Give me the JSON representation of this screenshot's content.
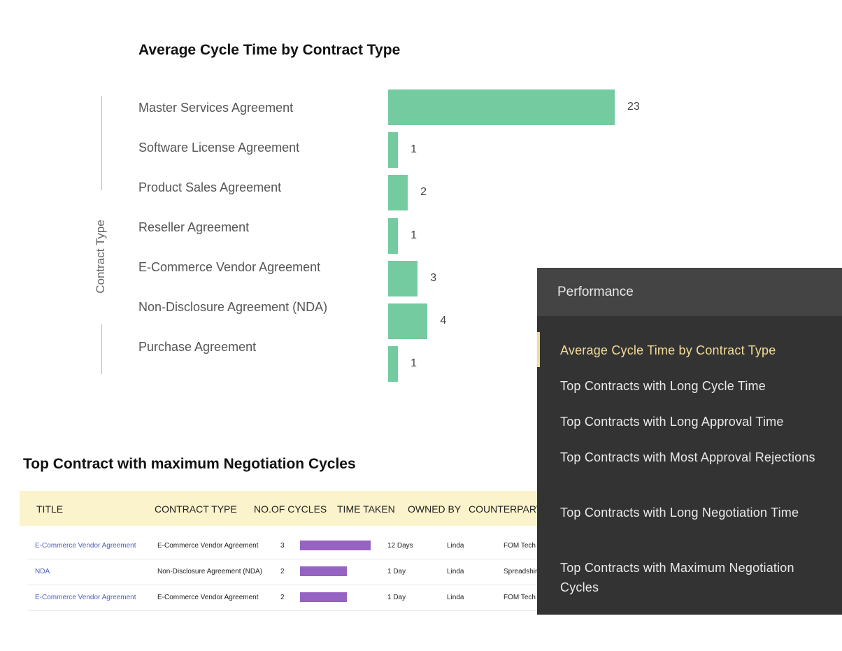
{
  "chart_data": {
    "type": "bar",
    "orientation": "horizontal",
    "title": "Average Cycle Time by Contract Type",
    "ylabel": "Contract Type",
    "categories": [
      "Master Services Agreement",
      "Software License Agreement",
      "Product Sales Agreement",
      "Reseller Agreement",
      "E-Commerce Vendor Agreement",
      "Non-Disclosure Agreement (NDA)",
      "Purchase Agreement"
    ],
    "values": [
      23,
      1,
      2,
      1,
      3,
      4,
      1
    ],
    "color": "#74cba0",
    "grid": false
  },
  "table": {
    "title": "Top Contract with maximum Negotiation Cycles",
    "headers": [
      "TITLE",
      "CONTRACT TYPE",
      "NO.OF CYCLES",
      "TIME TAKEN",
      "OWNED BY",
      "COUNTERPART"
    ],
    "bar_color": "#9563c2",
    "rows": [
      {
        "title": "E-Commerce Vendor Agreement",
        "type": "E-Commerce Vendor Agreement",
        "cycles": "3",
        "time": "12 Days",
        "owner": "Linda",
        "counterparty": "FOM Tech"
      },
      {
        "title": "NDA",
        "type": "Non-Disclosure Agreement (NDA)",
        "cycles": "2",
        "time": "1 Day",
        "owner": "Linda",
        "counterparty": "Spreadshir"
      },
      {
        "title": "E-Commerce Vendor Agreement",
        "type": "E-Commerce Vendor Agreement",
        "cycles": "2",
        "time": "1 Day",
        "owner": "Linda",
        "counterparty": "FOM Tech"
      }
    ]
  },
  "panel": {
    "title": "Performance",
    "accent": "#f3dc9a",
    "items": [
      {
        "label": "Average Cycle Time by Contract Type",
        "active": true
      },
      {
        "label": "Top Contracts with Long Cycle Time"
      },
      {
        "label": "Top Contracts with Long Approval Time"
      },
      {
        "label": "Top Contracts with Most Approval Rejections"
      },
      {
        "label": "Top Contracts with Long Negotiation Time"
      },
      {
        "label": "Top Contracts with Maximum Negotiation Cycles"
      }
    ]
  }
}
